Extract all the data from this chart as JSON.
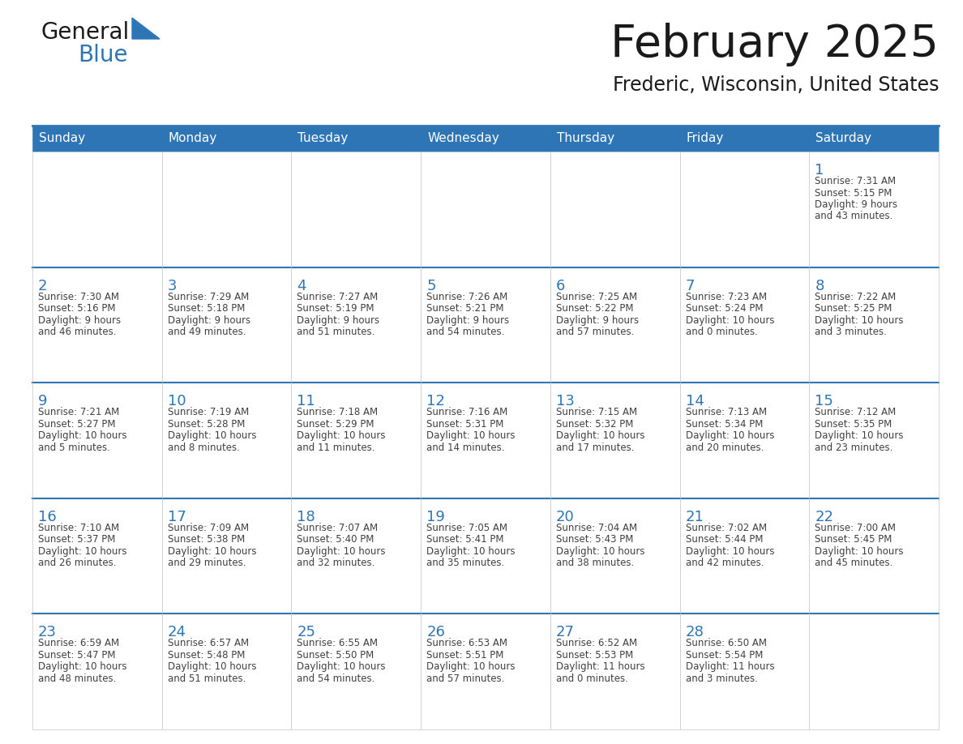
{
  "title": "February 2025",
  "subtitle": "Frederic, Wisconsin, United States",
  "header_bg": "#2E75B6",
  "header_text_color": "#FFFFFF",
  "cell_bg_white": "#FFFFFF",
  "cell_bg_light": "#F2F2F2",
  "cell_border_color": "#2E75B6",
  "row_top_line_color": "#2E75B6",
  "day_number_color": "#2E75B6",
  "cell_text_color": "#404040",
  "bg_color": "#FFFFFF",
  "days_of_week": [
    "Sunday",
    "Monday",
    "Tuesday",
    "Wednesday",
    "Thursday",
    "Friday",
    "Saturday"
  ],
  "weeks": [
    [
      {
        "day": null,
        "info": null
      },
      {
        "day": null,
        "info": null
      },
      {
        "day": null,
        "info": null
      },
      {
        "day": null,
        "info": null
      },
      {
        "day": null,
        "info": null
      },
      {
        "day": null,
        "info": null
      },
      {
        "day": 1,
        "info": "Sunrise: 7:31 AM\nSunset: 5:15 PM\nDaylight: 9 hours\nand 43 minutes."
      }
    ],
    [
      {
        "day": 2,
        "info": "Sunrise: 7:30 AM\nSunset: 5:16 PM\nDaylight: 9 hours\nand 46 minutes."
      },
      {
        "day": 3,
        "info": "Sunrise: 7:29 AM\nSunset: 5:18 PM\nDaylight: 9 hours\nand 49 minutes."
      },
      {
        "day": 4,
        "info": "Sunrise: 7:27 AM\nSunset: 5:19 PM\nDaylight: 9 hours\nand 51 minutes."
      },
      {
        "day": 5,
        "info": "Sunrise: 7:26 AM\nSunset: 5:21 PM\nDaylight: 9 hours\nand 54 minutes."
      },
      {
        "day": 6,
        "info": "Sunrise: 7:25 AM\nSunset: 5:22 PM\nDaylight: 9 hours\nand 57 minutes."
      },
      {
        "day": 7,
        "info": "Sunrise: 7:23 AM\nSunset: 5:24 PM\nDaylight: 10 hours\nand 0 minutes."
      },
      {
        "day": 8,
        "info": "Sunrise: 7:22 AM\nSunset: 5:25 PM\nDaylight: 10 hours\nand 3 minutes."
      }
    ],
    [
      {
        "day": 9,
        "info": "Sunrise: 7:21 AM\nSunset: 5:27 PM\nDaylight: 10 hours\nand 5 minutes."
      },
      {
        "day": 10,
        "info": "Sunrise: 7:19 AM\nSunset: 5:28 PM\nDaylight: 10 hours\nand 8 minutes."
      },
      {
        "day": 11,
        "info": "Sunrise: 7:18 AM\nSunset: 5:29 PM\nDaylight: 10 hours\nand 11 minutes."
      },
      {
        "day": 12,
        "info": "Sunrise: 7:16 AM\nSunset: 5:31 PM\nDaylight: 10 hours\nand 14 minutes."
      },
      {
        "day": 13,
        "info": "Sunrise: 7:15 AM\nSunset: 5:32 PM\nDaylight: 10 hours\nand 17 minutes."
      },
      {
        "day": 14,
        "info": "Sunrise: 7:13 AM\nSunset: 5:34 PM\nDaylight: 10 hours\nand 20 minutes."
      },
      {
        "day": 15,
        "info": "Sunrise: 7:12 AM\nSunset: 5:35 PM\nDaylight: 10 hours\nand 23 minutes."
      }
    ],
    [
      {
        "day": 16,
        "info": "Sunrise: 7:10 AM\nSunset: 5:37 PM\nDaylight: 10 hours\nand 26 minutes."
      },
      {
        "day": 17,
        "info": "Sunrise: 7:09 AM\nSunset: 5:38 PM\nDaylight: 10 hours\nand 29 minutes."
      },
      {
        "day": 18,
        "info": "Sunrise: 7:07 AM\nSunset: 5:40 PM\nDaylight: 10 hours\nand 32 minutes."
      },
      {
        "day": 19,
        "info": "Sunrise: 7:05 AM\nSunset: 5:41 PM\nDaylight: 10 hours\nand 35 minutes."
      },
      {
        "day": 20,
        "info": "Sunrise: 7:04 AM\nSunset: 5:43 PM\nDaylight: 10 hours\nand 38 minutes."
      },
      {
        "day": 21,
        "info": "Sunrise: 7:02 AM\nSunset: 5:44 PM\nDaylight: 10 hours\nand 42 minutes."
      },
      {
        "day": 22,
        "info": "Sunrise: 7:00 AM\nSunset: 5:45 PM\nDaylight: 10 hours\nand 45 minutes."
      }
    ],
    [
      {
        "day": 23,
        "info": "Sunrise: 6:59 AM\nSunset: 5:47 PM\nDaylight: 10 hours\nand 48 minutes."
      },
      {
        "day": 24,
        "info": "Sunrise: 6:57 AM\nSunset: 5:48 PM\nDaylight: 10 hours\nand 51 minutes."
      },
      {
        "day": 25,
        "info": "Sunrise: 6:55 AM\nSunset: 5:50 PM\nDaylight: 10 hours\nand 54 minutes."
      },
      {
        "day": 26,
        "info": "Sunrise: 6:53 AM\nSunset: 5:51 PM\nDaylight: 10 hours\nand 57 minutes."
      },
      {
        "day": 27,
        "info": "Sunrise: 6:52 AM\nSunset: 5:53 PM\nDaylight: 11 hours\nand 0 minutes."
      },
      {
        "day": 28,
        "info": "Sunrise: 6:50 AM\nSunset: 5:54 PM\nDaylight: 11 hours\nand 3 minutes."
      },
      {
        "day": null,
        "info": null
      }
    ]
  ],
  "logo_general_color": "#1a1a1a",
  "logo_blue_color": "#2E75B6"
}
